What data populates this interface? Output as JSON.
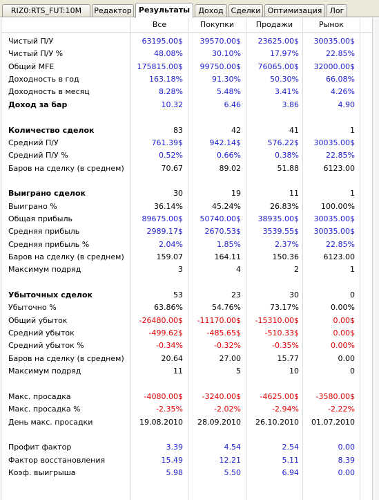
{
  "tabs": [
    {
      "label": "RIZ0:RTS_FUT:10M",
      "active": false
    },
    {
      "label": "Редактор",
      "active": false
    },
    {
      "label": "Результаты",
      "active": true
    },
    {
      "label": "Доход",
      "active": false
    },
    {
      "label": "Сделки",
      "active": false
    },
    {
      "label": "Оптимизация",
      "active": false
    },
    {
      "label": "Лог",
      "active": false
    }
  ],
  "columns": [
    "Все",
    "Покупки",
    "Продажи",
    "Рынок"
  ],
  "colors": {
    "blue": "#2020d0",
    "red": "#e00000",
    "black": "#000000"
  },
  "rows": [
    {
      "label": "Чистый П/У",
      "bold": false,
      "color": "blue",
      "values": [
        "63195.00$",
        "39570.00$",
        "23625.00$",
        "30035.00$"
      ]
    },
    {
      "label": "Чистый П/У %",
      "bold": false,
      "color": "blue",
      "values": [
        "48.08%",
        "30.10%",
        "17.97%",
        "22.85%"
      ]
    },
    {
      "label": "Общий MFE",
      "bold": false,
      "color": "blue",
      "values": [
        "175815.00$",
        "99750.00$",
        "76065.00$",
        "32000.00$"
      ]
    },
    {
      "label": "Доходность в год",
      "bold": false,
      "color": "blue",
      "values": [
        "163.18%",
        "91.30%",
        "50.30%",
        "66.08%"
      ]
    },
    {
      "label": "Доходность в месяц",
      "bold": false,
      "color": "blue",
      "values": [
        "8.28%",
        "5.48%",
        "3.41%",
        "4.26%"
      ]
    },
    {
      "label": "Доход за бар",
      "bold": true,
      "color": "blue",
      "values": [
        "10.32",
        "6.46",
        "3.86",
        "4.90"
      ]
    },
    {
      "label": "",
      "bold": false,
      "color": "black",
      "values": [
        "",
        "",
        "",
        ""
      ]
    },
    {
      "label": "Количество сделок",
      "bold": true,
      "color": "black",
      "values": [
        "83",
        "42",
        "41",
        "1"
      ]
    },
    {
      "label": "Средний П/У",
      "bold": false,
      "color": "blue",
      "values": [
        "761.39$",
        "942.14$",
        "576.22$",
        "30035.00$"
      ]
    },
    {
      "label": "Средний П/У %",
      "bold": false,
      "color": "blue",
      "values": [
        "0.52%",
        "0.66%",
        "0.38%",
        "22.85%"
      ]
    },
    {
      "label": "Баров на сделку (в среднем)",
      "bold": false,
      "color": "black",
      "values": [
        "70.67",
        "89.02",
        "51.88",
        "6123.00"
      ]
    },
    {
      "label": "",
      "bold": false,
      "color": "black",
      "values": [
        "",
        "",
        "",
        ""
      ]
    },
    {
      "label": "Выиграно сделок",
      "bold": true,
      "color": "black",
      "values": [
        "30",
        "19",
        "11",
        "1"
      ]
    },
    {
      "label": "Выиграно %",
      "bold": false,
      "color": "black",
      "values": [
        "36.14%",
        "45.24%",
        "26.83%",
        "100.00%"
      ]
    },
    {
      "label": "Общая прибыль",
      "bold": false,
      "color": "blue",
      "values": [
        "89675.00$",
        "50740.00$",
        "38935.00$",
        "30035.00$"
      ]
    },
    {
      "label": "Средняя прибыль",
      "bold": false,
      "color": "blue",
      "values": [
        "2989.17$",
        "2670.53$",
        "3539.55$",
        "30035.00$"
      ]
    },
    {
      "label": "Средняя прибыль %",
      "bold": false,
      "color": "blue",
      "values": [
        "2.04%",
        "1.85%",
        "2.37%",
        "22.85%"
      ]
    },
    {
      "label": "Баров на сделку (в среднем)",
      "bold": false,
      "color": "black",
      "values": [
        "159.07",
        "164.11",
        "150.36",
        "6123.00"
      ]
    },
    {
      "label": "Максимум подряд",
      "bold": false,
      "color": "black",
      "values": [
        "3",
        "4",
        "2",
        "1"
      ]
    },
    {
      "label": "",
      "bold": false,
      "color": "black",
      "values": [
        "",
        "",
        "",
        ""
      ]
    },
    {
      "label": "Убыточных сделок",
      "bold": true,
      "color": "black",
      "values": [
        "53",
        "23",
        "30",
        "0"
      ]
    },
    {
      "label": "Убыточно %",
      "bold": false,
      "color": "black",
      "values": [
        "63.86%",
        "54.76%",
        "73.17%",
        "0.00%"
      ]
    },
    {
      "label": "Общий убыток",
      "bold": false,
      "color": "red",
      "values": [
        "-26480.00$",
        "-11170.00$",
        "-15310.00$",
        "0.00$"
      ]
    },
    {
      "label": "Средний убыток",
      "bold": false,
      "color": "red",
      "values": [
        "-499.62$",
        "-485.65$",
        "-510.33$",
        "0.00$"
      ]
    },
    {
      "label": "Средний убыток %",
      "bold": false,
      "color": "red",
      "values": [
        "-0.34%",
        "-0.32%",
        "-0.35%",
        "0.00%"
      ]
    },
    {
      "label": "Баров на сделку (в среднем)",
      "bold": false,
      "color": "black",
      "values": [
        "20.64",
        "27.00",
        "15.77",
        "0.00"
      ]
    },
    {
      "label": "Максимум подряд",
      "bold": false,
      "color": "black",
      "values": [
        "11",
        "5",
        "10",
        "0"
      ]
    },
    {
      "label": "",
      "bold": false,
      "color": "black",
      "values": [
        "",
        "",
        "",
        ""
      ]
    },
    {
      "label": "Макс. просадка",
      "bold": false,
      "color": "red",
      "values": [
        "-4080.00$",
        "-3240.00$",
        "-4625.00$",
        "-3580.00$"
      ]
    },
    {
      "label": "Макс. просадка %",
      "bold": false,
      "color": "red",
      "values": [
        "-2.35%",
        "-2.02%",
        "-2.94%",
        "-2.22%"
      ]
    },
    {
      "label": "День макс. просадки",
      "bold": false,
      "color": "black",
      "values": [
        "19.08.2010",
        "28.09.2010",
        "26.10.2010",
        "01.07.2010"
      ]
    },
    {
      "label": "",
      "bold": false,
      "color": "black",
      "values": [
        "",
        "",
        "",
        ""
      ]
    },
    {
      "label": "Профит фактор",
      "bold": false,
      "color": "blue",
      "values": [
        "3.39",
        "4.54",
        "2.54",
        "0.00"
      ]
    },
    {
      "label": "Фактор восстановления",
      "bold": false,
      "color": "blue",
      "values": [
        "15.49",
        "12.21",
        "5.11",
        "8.39"
      ]
    },
    {
      "label": "Коэф. выигрыша",
      "bold": false,
      "color": "blue",
      "values": [
        "5.98",
        "5.50",
        "6.94",
        "0.00"
      ]
    }
  ]
}
